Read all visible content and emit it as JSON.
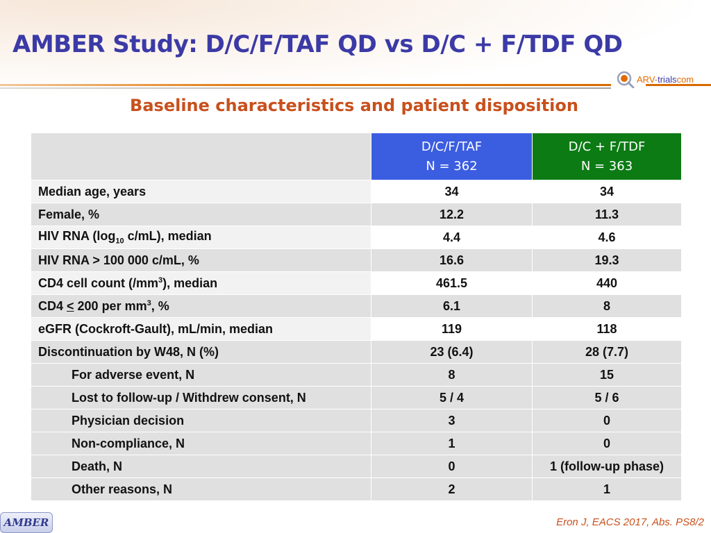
{
  "title": "AMBER Study: D/C/F/TAF QD vs D/C + F/TDF QD",
  "logo": {
    "part1": "ARV-",
    "part2": "trials",
    "part3": "com"
  },
  "subtitle": "Baseline characteristics and patient disposition",
  "table": {
    "columns": [
      {
        "name": "D/C/F/TAF",
        "n": "N = 362",
        "color": "#3b5de0"
      },
      {
        "name": "D/C + F/TDF",
        "n": "N = 363",
        "color": "#0c7b14"
      }
    ],
    "rows": [
      {
        "label": "Median age, years",
        "v1": "34",
        "v2": "34"
      },
      {
        "label": "Female, %",
        "v1": "12.2",
        "v2": "11.3"
      },
      {
        "label_pre": "HIV RNA (log",
        "label_sub": "10",
        "label_post": " c/mL), median",
        "v1": "4.4",
        "v2": "4.6"
      },
      {
        "label": "HIV RNA > 100 000 c/mL, %",
        "v1": "16.6",
        "v2": "19.3"
      },
      {
        "label_pre": "CD4 cell count (/mm",
        "label_sup": "3",
        "label_post": "), median",
        "v1": "461.5",
        "v2": "440"
      },
      {
        "label_pre": "CD4 ",
        "label_u": "<",
        "label_mid": " 200 per mm",
        "label_sup": "3",
        "label_post": ", %",
        "v1": "6.1",
        "v2": "8"
      },
      {
        "label": "eGFR (Cockroft-Gault), mL/min, median",
        "v1": "119",
        "v2": "118"
      },
      {
        "label": "Discontinuation by W48, N (%)",
        "v1": "23 (6.4)",
        "v2": "28 (7.7)"
      },
      {
        "label": "For adverse event, N",
        "v1": "8",
        "v2": "15"
      },
      {
        "label": "Lost to follow-up / Withdrew consent, N",
        "v1": "5 / 4",
        "v2": "5 / 6"
      },
      {
        "label": "Physician decision",
        "v1": "3",
        "v2": "0"
      },
      {
        "label": "Non-compliance, N",
        "v1": "1",
        "v2": "0"
      },
      {
        "label": "Death, N",
        "v1": "0",
        "v2": "1 (follow-up phase)"
      },
      {
        "label": "Other reasons, N",
        "v1": "2",
        "v2": "1"
      }
    ]
  },
  "badge": "AMBER",
  "citation": "Eron J, EACS 2017, Abs. PS8/2",
  "colors": {
    "title": "#3b3aa6",
    "subtitle": "#c8501c",
    "accent_orange": "#d96a00",
    "row_grey": "#e0e0e0"
  }
}
